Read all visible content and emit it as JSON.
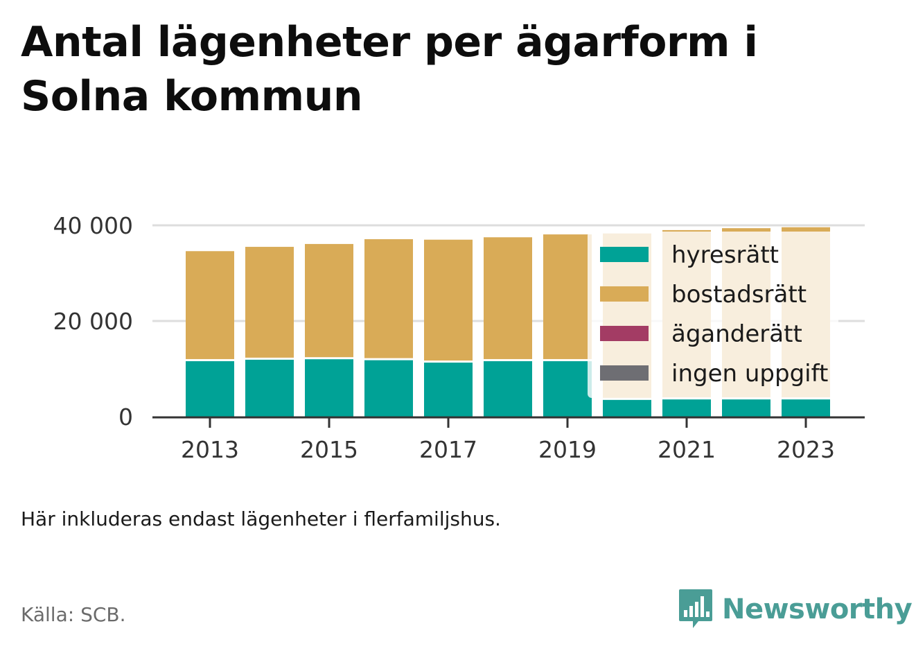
{
  "title": "Antal lägenheter per ägarform i Solna kommun",
  "note": "Här inkluderas endast lägenheter i flerfamiljshus.",
  "source": "Källa: SCB.",
  "brand": {
    "name": "Newsworthy",
    "icon": "bar-chart-logo-icon",
    "color": "#4a9d96"
  },
  "colors": {
    "hyresratt": "#00a296",
    "bostadsratt": "#d9ab57",
    "aganderatt": "#a33c64",
    "ingen_uppgift": "#6e6e73",
    "gridline": "#dddddd",
    "axis": "#333333"
  },
  "chart_data": {
    "type": "bar",
    "stacked": true,
    "categories": [
      "2013",
      "2014",
      "2015",
      "2016",
      "2017",
      "2018",
      "2019",
      "2020",
      "2021",
      "2022",
      "2023"
    ],
    "x_tick_labels": [
      "2013",
      "2015",
      "2017",
      "2019",
      "2021",
      "2023"
    ],
    "y_tick_labels": [
      "0",
      "20 000",
      "40 000"
    ],
    "y_ticks": [
      0,
      20000,
      40000
    ],
    "ylim": [
      0,
      40000
    ],
    "grid": "horizontal",
    "legend_position": "right",
    "series": [
      {
        "name": "hyresrätt",
        "color": "#00a296",
        "values": [
          11600,
          11900,
          12000,
          11800,
          11300,
          11600,
          11600,
          3500,
          3600,
          3600,
          3600
        ]
      },
      {
        "name": "bostadsrätt",
        "color": "#d9ab57",
        "values": [
          23000,
          23600,
          24100,
          25300,
          25700,
          25900,
          26500,
          34800,
          35400,
          35800,
          36000
        ]
      },
      {
        "name": "äganderätt",
        "color": "#a33c64",
        "values": [
          0,
          0,
          0,
          0,
          0,
          0,
          0,
          0,
          0,
          0,
          0
        ]
      },
      {
        "name": "ingen uppgift",
        "color": "#6e6e73",
        "values": [
          0,
          0,
          0,
          0,
          0,
          0,
          0,
          0,
          0,
          0,
          0
        ]
      }
    ]
  }
}
